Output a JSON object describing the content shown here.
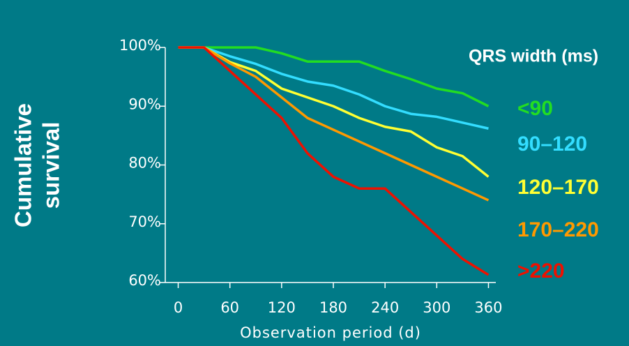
{
  "chart_data": {
    "type": "line",
    "legend_title": "QRS width (ms)",
    "ylabel": [
      "Cumulative",
      "survival"
    ],
    "xlabel": "Observation period (d)",
    "x": [
      0,
      30,
      60,
      90,
      120,
      150,
      180,
      210,
      240,
      270,
      300,
      330,
      360
    ],
    "series": [
      {
        "name": "<90",
        "color": "#22dd22",
        "values": [
          100,
          100,
          100,
          100,
          99,
          97.6,
          97.6,
          97.6,
          96,
          94.6,
          93,
          92.2,
          90
        ]
      },
      {
        "name": "90–120",
        "color": "#33ddff",
        "values": [
          100,
          100,
          98.5,
          97.2,
          95.5,
          94.2,
          93.5,
          92,
          90,
          88.7,
          88.2,
          87.2,
          86.2
        ]
      },
      {
        "name": "120–170",
        "color": "#ffff33",
        "values": [
          100,
          100,
          97.5,
          96,
          93,
          91.5,
          90,
          88,
          86.5,
          85.7,
          83,
          81.5,
          78
        ]
      },
      {
        "name": "170–220",
        "color": "#ff9900",
        "values": [
          100,
          100,
          97.3,
          95,
          91.5,
          88,
          86,
          84,
          82,
          80,
          78,
          76,
          74
        ]
      },
      {
        "name": ">220",
        "color": "#ee1100",
        "values": [
          100,
          100,
          96,
          92,
          88,
          82,
          78,
          76,
          76,
          72,
          68,
          64,
          61.3
        ]
      }
    ],
    "xlim": [
      -15,
      375
    ],
    "xticks": [
      0,
      60,
      120,
      180,
      240,
      300,
      360
    ],
    "ylim": [
      60,
      100
    ],
    "yticks": [
      {
        "value": 60,
        "label": "60%"
      },
      {
        "value": 70,
        "label": "70%"
      },
      {
        "value": 80,
        "label": "80%"
      },
      {
        "value": 90,
        "label": "90%"
      },
      {
        "value": 100,
        "label": "100%"
      }
    ]
  }
}
